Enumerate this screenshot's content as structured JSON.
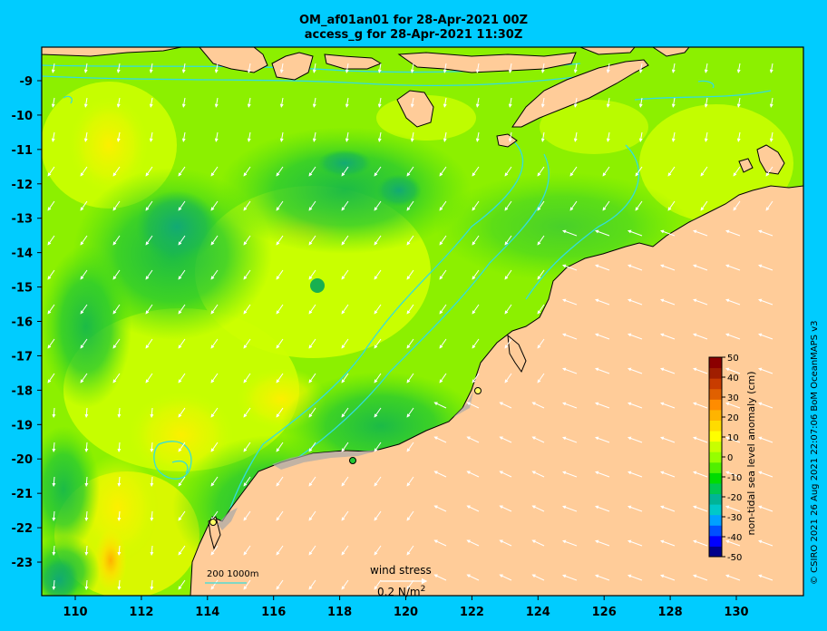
{
  "title": {
    "line1": "OM_af01an01 for 28-Apr-2021 00Z",
    "line2": "access_g for 28-Apr-2021 11:30Z"
  },
  "axes": {
    "x_ticks": [
      "110",
      "112",
      "114",
      "116",
      "118",
      "120",
      "122",
      "124",
      "126",
      "128",
      "130"
    ],
    "x_values": [
      110,
      112,
      114,
      116,
      118,
      120,
      122,
      124,
      126,
      128,
      130
    ],
    "y_ticks": [
      "-9",
      "-10",
      "-11",
      "-12",
      "-13",
      "-14",
      "-15",
      "-16",
      "-17",
      "-18",
      "-19",
      "-20",
      "-21",
      "-22",
      "-23"
    ],
    "y_values": [
      -9,
      -10,
      -11,
      -12,
      -13,
      -14,
      -15,
      -16,
      -17,
      -18,
      -19,
      -20,
      -21,
      -22,
      -23
    ],
    "lon_range": [
      109,
      132
    ],
    "lat_range": [
      -24,
      -8
    ]
  },
  "colorbar": {
    "label": "non-tidal sea level anomaly (cm)",
    "ticks": [
      "50",
      "40",
      "30",
      "20",
      "10",
      "0",
      "-10",
      "-20",
      "-30",
      "-40",
      "-50"
    ],
    "range": [
      -50,
      50
    ],
    "colors": [
      "#00008b",
      "#0000ff",
      "#0050ff",
      "#00a0ff",
      "#00c8c8",
      "#00b496",
      "#00c850",
      "#00dc00",
      "#50f000",
      "#96ff00",
      "#c8ff00",
      "#ffff00",
      "#ffdc00",
      "#ffb400",
      "#ff8c00",
      "#e06000",
      "#c83c00",
      "#a01e00",
      "#8b0000"
    ]
  },
  "scale_bar": {
    "label": "200  1000m"
  },
  "wind_stress": {
    "title": "wind stress",
    "label": "0.2 N/m",
    "exponent": "2"
  },
  "credit": "© CSIRO 2021  26 Aug 2021 22:07:06 BoM OceanMAPS v3",
  "colors": {
    "background": "#00ccff",
    "land": "#ffcc99",
    "contour": "#33dddd",
    "field_base": "#8cf000",
    "field_high": "#d4ff00",
    "field_low": "#22c830",
    "field_lower": "#10b060",
    "field_yellow": "#eef000"
  }
}
